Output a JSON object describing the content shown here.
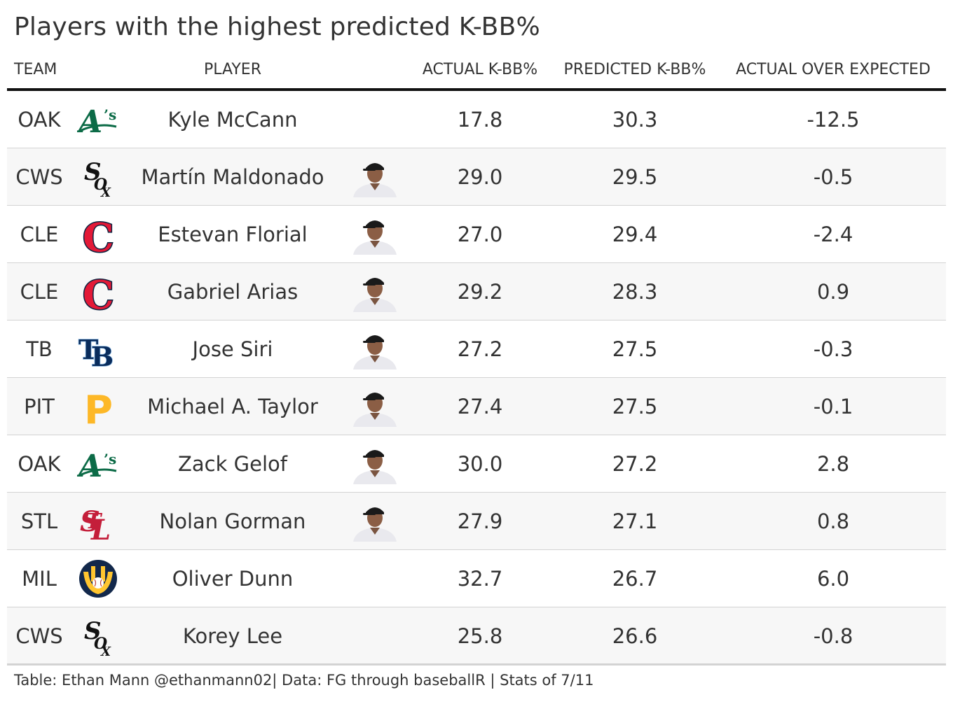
{
  "title": "Players with the highest predicted K-BB%",
  "columns": {
    "team": "TEAM",
    "player": "PLAYER",
    "actual": "ACTUAL K-BB%",
    "predicted": "PREDICTED K-BB%",
    "aoe": "ACTUAL OVER EXPECTED"
  },
  "caption": "Table: Ethan Mann @ethanmann02| Data: FG through baseballR | Stats of 7/11",
  "colors": {
    "oak": "#0c6b47",
    "cws": "#111111",
    "cle_red": "#e31937",
    "cle_navy": "#0c2340",
    "tb_navy": "#092c5c",
    "tb_light": "#8fbce6",
    "pit": "#fdb827",
    "stl": "#c41e3a",
    "mil_navy": "#12284b",
    "mil_gold": "#ffc52f"
  },
  "rows": [
    {
      "team": "OAK",
      "logo": "athletics-logo",
      "player": "Kyle McCann",
      "photo": null,
      "actual": "17.8",
      "predicted": "30.3",
      "aoe": "-12.5"
    },
    {
      "team": "CWS",
      "logo": "white-sox-logo",
      "player": "Martín Maldonado",
      "photo": "player-headshot",
      "actual": "29.0",
      "predicted": "29.5",
      "aoe": "-0.5"
    },
    {
      "team": "CLE",
      "logo": "guardians-logo",
      "player": "Estevan Florial",
      "photo": "player-headshot",
      "actual": "27.0",
      "predicted": "29.4",
      "aoe": "-2.4"
    },
    {
      "team": "CLE",
      "logo": "guardians-logo",
      "player": "Gabriel Arias",
      "photo": "player-headshot",
      "actual": "29.2",
      "predicted": "28.3",
      "aoe": "0.9"
    },
    {
      "team": "TB",
      "logo": "rays-logo",
      "player": "Jose Siri",
      "photo": "player-headshot",
      "actual": "27.2",
      "predicted": "27.5",
      "aoe": "-0.3"
    },
    {
      "team": "PIT",
      "logo": "pirates-logo",
      "player": "Michael A. Taylor",
      "photo": "player-headshot",
      "actual": "27.4",
      "predicted": "27.5",
      "aoe": "-0.1"
    },
    {
      "team": "OAK",
      "logo": "athletics-logo",
      "player": "Zack Gelof",
      "photo": "player-headshot",
      "actual": "30.0",
      "predicted": "27.2",
      "aoe": "2.8"
    },
    {
      "team": "STL",
      "logo": "cardinals-logo",
      "player": "Nolan Gorman",
      "photo": "player-headshot",
      "actual": "27.9",
      "predicted": "27.1",
      "aoe": "0.8"
    },
    {
      "team": "MIL",
      "logo": "brewers-logo",
      "player": "Oliver Dunn",
      "photo": null,
      "actual": "32.7",
      "predicted": "26.7",
      "aoe": "6.0"
    },
    {
      "team": "CWS",
      "logo": "white-sox-logo",
      "player": "Korey Lee",
      "photo": null,
      "actual": "25.8",
      "predicted": "26.6",
      "aoe": "-0.8"
    }
  ],
  "chart_data": {
    "type": "table",
    "title": "Players with the highest predicted K-BB%",
    "columns": [
      "TEAM",
      "PLAYER",
      "ACTUAL K-BB%",
      "PREDICTED K-BB%",
      "ACTUAL OVER EXPECTED"
    ],
    "rows": [
      [
        "OAK",
        "Kyle McCann",
        17.8,
        30.3,
        -12.5
      ],
      [
        "CWS",
        "Martín Maldonado",
        29.0,
        29.5,
        -0.5
      ],
      [
        "CLE",
        "Estevan Florial",
        27.0,
        29.4,
        -2.4
      ],
      [
        "CLE",
        "Gabriel Arias",
        29.2,
        28.3,
        0.9
      ],
      [
        "TB",
        "Jose Siri",
        27.2,
        27.5,
        -0.3
      ],
      [
        "PIT",
        "Michael A. Taylor",
        27.4,
        27.5,
        -0.1
      ],
      [
        "OAK",
        "Zack Gelof",
        30.0,
        27.2,
        2.8
      ],
      [
        "STL",
        "Nolan Gorman",
        27.9,
        27.1,
        0.8
      ],
      [
        "MIL",
        "Oliver Dunn",
        32.7,
        26.7,
        6.0
      ],
      [
        "CWS",
        "Korey Lee",
        25.8,
        26.6,
        -0.8
      ]
    ]
  }
}
